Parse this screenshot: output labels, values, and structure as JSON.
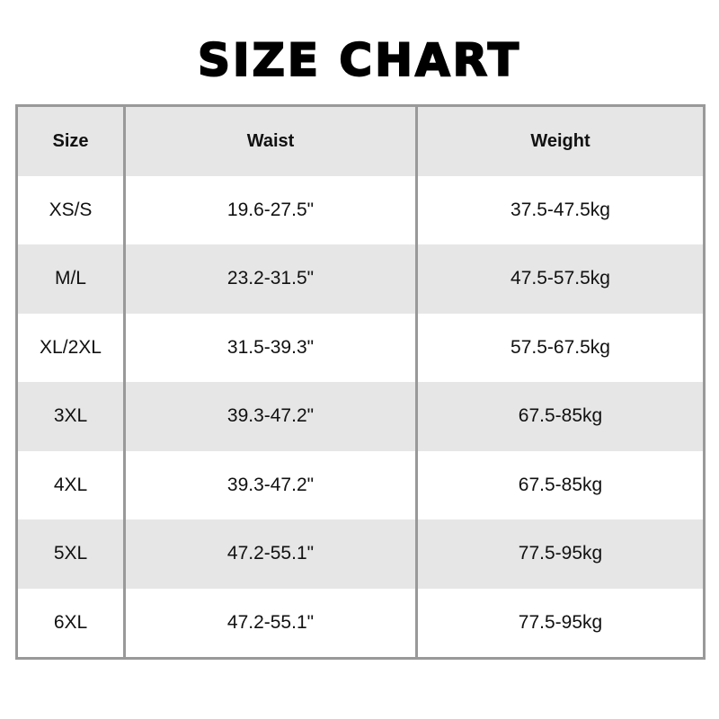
{
  "title": "SIZE CHART",
  "table": {
    "headers": [
      "Size",
      "Waist",
      "Weight"
    ],
    "rows": [
      [
        "XS/S",
        "19.6-27.5\"",
        "37.5-47.5kg"
      ],
      [
        "M/L",
        "23.2-31.5\"",
        "47.5-57.5kg"
      ],
      [
        "XL/2XL",
        "31.5-39.3\"",
        "57.5-67.5kg"
      ],
      [
        "3XL",
        "39.3-47.2\"",
        "67.5-85kg"
      ],
      [
        "4XL",
        "39.3-47.2\"",
        "67.5-85kg"
      ],
      [
        "5XL",
        "47.2-55.1\"",
        "77.5-95kg"
      ],
      [
        "6XL",
        "47.2-55.1\"",
        "77.5-95kg"
      ]
    ]
  },
  "colors": {
    "header_bg": "#e6e6e6",
    "stripe_bg": "#e6e6e6",
    "border": "#999999"
  }
}
